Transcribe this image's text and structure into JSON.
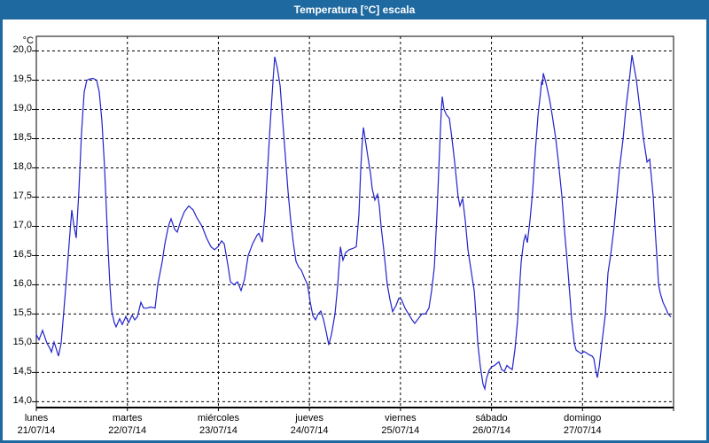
{
  "window": {
    "title": "Temperatura [°C] escala"
  },
  "colors": {
    "titlebar_bg": "#1E69A0",
    "title_text": "#FFFFFF",
    "frame_border": "#1E69A0",
    "background": "#FFFFFF",
    "grid": "#000000",
    "line": "#2222CC"
  },
  "chart_data": {
    "type": "line",
    "title": "Temperatura [°C] escala",
    "y_unit_label": "°C",
    "ylim": [
      13.9,
      20.25
    ],
    "y_gridlines": [
      20.0,
      19.5,
      19.0,
      18.5,
      18.0,
      17.5,
      17.0,
      16.5,
      16.0,
      15.5,
      15.0,
      14.5,
      14.0
    ],
    "y_tick_labels": [
      "20,0",
      "19,5",
      "19,0",
      "18,5",
      "18,0",
      "17,5",
      "17,0",
      "16,5",
      "16,0",
      "15,5",
      "15,0",
      "14,5",
      "14,0"
    ],
    "xlim": [
      0,
      7
    ],
    "x_day_gridlines": [
      1,
      2,
      3,
      4,
      5,
      6
    ],
    "x_ticks": [
      {
        "day": 0,
        "name": "lunes",
        "date": "21/07/14"
      },
      {
        "day": 1,
        "name": "martes",
        "date": "22/07/14"
      },
      {
        "day": 2,
        "name": "miércoles",
        "date": "23/07/14"
      },
      {
        "day": 3,
        "name": "jueves",
        "date": "24/07/14"
      },
      {
        "day": 4,
        "name": "viernes",
        "date": "25/07/14"
      },
      {
        "day": 5,
        "name": "sábado",
        "date": "26/07/14"
      },
      {
        "day": 6,
        "name": "domingo",
        "date": "27/07/14"
      }
    ],
    "grid": "dashed-black",
    "legend": "none",
    "series": [
      {
        "name": "Temperatura",
        "color": "#2222CC",
        "points": [
          [
            0.0,
            15.15
          ],
          [
            0.029,
            15.06
          ],
          [
            0.068,
            15.22
          ],
          [
            0.117,
            15.0
          ],
          [
            0.146,
            14.92
          ],
          [
            0.166,
            14.85
          ],
          [
            0.195,
            15.02
          ],
          [
            0.224,
            14.88
          ],
          [
            0.243,
            14.78
          ],
          [
            0.273,
            15.0
          ],
          [
            0.302,
            15.55
          ],
          [
            0.341,
            16.3
          ],
          [
            0.37,
            16.9
          ],
          [
            0.389,
            17.28
          ],
          [
            0.409,
            17.05
          ],
          [
            0.438,
            16.8
          ],
          [
            0.467,
            17.6
          ],
          [
            0.497,
            18.6
          ],
          [
            0.526,
            19.3
          ],
          [
            0.555,
            19.5
          ],
          [
            0.584,
            19.52
          ],
          [
            0.623,
            19.53
          ],
          [
            0.662,
            19.5
          ],
          [
            0.691,
            19.3
          ],
          [
            0.72,
            18.8
          ],
          [
            0.75,
            18.0
          ],
          [
            0.769,
            17.3
          ],
          [
            0.789,
            16.6
          ],
          [
            0.808,
            16.0
          ],
          [
            0.828,
            15.55
          ],
          [
            0.857,
            15.35
          ],
          [
            0.876,
            15.28
          ],
          [
            0.915,
            15.42
          ],
          [
            0.944,
            15.32
          ],
          [
            0.983,
            15.46
          ],
          [
            1.013,
            15.35
          ],
          [
            1.052,
            15.48
          ],
          [
            1.081,
            15.4
          ],
          [
            1.11,
            15.45
          ],
          [
            1.149,
            15.7
          ],
          [
            1.178,
            15.6
          ],
          [
            1.217,
            15.6
          ],
          [
            1.256,
            15.62
          ],
          [
            1.305,
            15.6
          ],
          [
            1.334,
            16.0
          ],
          [
            1.383,
            16.4
          ],
          [
            1.412,
            16.7
          ],
          [
            1.451,
            17.0
          ],
          [
            1.48,
            17.13
          ],
          [
            1.519,
            16.95
          ],
          [
            1.548,
            16.9
          ],
          [
            1.587,
            17.1
          ],
          [
            1.626,
            17.25
          ],
          [
            1.675,
            17.35
          ],
          [
            1.723,
            17.28
          ],
          [
            1.762,
            17.15
          ],
          [
            1.821,
            17.0
          ],
          [
            1.87,
            16.8
          ],
          [
            1.918,
            16.65
          ],
          [
            1.957,
            16.6
          ],
          [
            1.996,
            16.65
          ],
          [
            2.035,
            16.75
          ],
          [
            2.064,
            16.7
          ],
          [
            2.103,
            16.35
          ],
          [
            2.132,
            16.05
          ],
          [
            2.171,
            16.0
          ],
          [
            2.21,
            16.05
          ],
          [
            2.249,
            15.9
          ],
          [
            2.288,
            16.1
          ],
          [
            2.327,
            16.5
          ],
          [
            2.376,
            16.7
          ],
          [
            2.425,
            16.85
          ],
          [
            2.444,
            16.88
          ],
          [
            2.483,
            16.73
          ],
          [
            2.512,
            17.2
          ],
          [
            2.541,
            18.0
          ],
          [
            2.571,
            18.8
          ],
          [
            2.6,
            19.5
          ],
          [
            2.619,
            19.9
          ],
          [
            2.648,
            19.7
          ],
          [
            2.678,
            19.4
          ],
          [
            2.707,
            18.8
          ],
          [
            2.736,
            18.2
          ],
          [
            2.765,
            17.6
          ],
          [
            2.794,
            17.1
          ],
          [
            2.824,
            16.7
          ],
          [
            2.853,
            16.4
          ],
          [
            2.882,
            16.3
          ],
          [
            2.911,
            16.25
          ],
          [
            2.95,
            16.1
          ],
          [
            2.979,
            16.0
          ],
          [
            3.009,
            15.7
          ],
          [
            3.038,
            15.47
          ],
          [
            3.067,
            15.4
          ],
          [
            3.096,
            15.5
          ],
          [
            3.125,
            15.55
          ],
          [
            3.155,
            15.4
          ],
          [
            3.184,
            15.2
          ],
          [
            3.213,
            14.97
          ],
          [
            3.242,
            15.15
          ],
          [
            3.281,
            15.5
          ],
          [
            3.311,
            16.0
          ],
          [
            3.34,
            16.65
          ],
          [
            3.369,
            16.42
          ],
          [
            3.398,
            16.55
          ],
          [
            3.437,
            16.6
          ],
          [
            3.476,
            16.62
          ],
          [
            3.515,
            16.65
          ],
          [
            3.544,
            17.2
          ],
          [
            3.564,
            18.0
          ],
          [
            3.583,
            18.5
          ],
          [
            3.593,
            18.69
          ],
          [
            3.612,
            18.5
          ],
          [
            3.641,
            18.2
          ],
          [
            3.671,
            17.9
          ],
          [
            3.69,
            17.64
          ],
          [
            3.719,
            17.45
          ],
          [
            3.748,
            17.55
          ],
          [
            3.768,
            17.35
          ],
          [
            3.787,
            17.0
          ],
          [
            3.816,
            16.6
          ],
          [
            3.855,
            16.0
          ],
          [
            3.885,
            15.75
          ],
          [
            3.914,
            15.54
          ],
          [
            3.953,
            15.65
          ],
          [
            3.982,
            15.77
          ],
          [
            4.011,
            15.75
          ],
          [
            4.05,
            15.6
          ],
          [
            4.089,
            15.5
          ],
          [
            4.128,
            15.4
          ],
          [
            4.157,
            15.34
          ],
          [
            4.196,
            15.42
          ],
          [
            4.235,
            15.5
          ],
          [
            4.274,
            15.5
          ],
          [
            4.313,
            15.6
          ],
          [
            4.342,
            15.9
          ],
          [
            4.372,
            16.3
          ],
          [
            4.401,
            17.2
          ],
          [
            4.43,
            18.3
          ],
          [
            4.449,
            19.0
          ],
          [
            4.459,
            19.22
          ],
          [
            4.478,
            19.0
          ],
          [
            4.508,
            18.9
          ],
          [
            4.537,
            18.85
          ],
          [
            4.566,
            18.5
          ],
          [
            4.595,
            18.1
          ],
          [
            4.615,
            17.8
          ],
          [
            4.634,
            17.5
          ],
          [
            4.654,
            17.35
          ],
          [
            4.683,
            17.48
          ],
          [
            4.712,
            17.1
          ],
          [
            4.741,
            16.6
          ],
          [
            4.771,
            16.3
          ],
          [
            4.79,
            16.1
          ],
          [
            4.81,
            15.9
          ],
          [
            4.829,
            15.5
          ],
          [
            4.849,
            15.0
          ],
          [
            4.878,
            14.6
          ],
          [
            4.907,
            14.3
          ],
          [
            4.926,
            14.22
          ],
          [
            4.946,
            14.4
          ],
          [
            4.975,
            14.54
          ],
          [
            5.004,
            14.6
          ],
          [
            5.034,
            14.62
          ],
          [
            5.063,
            14.66
          ],
          [
            5.082,
            14.68
          ],
          [
            5.111,
            14.55
          ],
          [
            5.141,
            14.52
          ],
          [
            5.17,
            14.62
          ],
          [
            5.199,
            14.58
          ],
          [
            5.228,
            14.55
          ],
          [
            5.258,
            14.9
          ],
          [
            5.287,
            15.4
          ],
          [
            5.306,
            15.9
          ],
          [
            5.326,
            16.4
          ],
          [
            5.355,
            16.75
          ],
          [
            5.374,
            16.85
          ],
          [
            5.394,
            16.72
          ],
          [
            5.423,
            17.1
          ],
          [
            5.452,
            17.6
          ],
          [
            5.482,
            18.3
          ],
          [
            5.511,
            18.9
          ],
          [
            5.54,
            19.3
          ],
          [
            5.55,
            19.48
          ],
          [
            5.56,
            19.42
          ],
          [
            5.569,
            19.62
          ],
          [
            5.599,
            19.45
          ],
          [
            5.638,
            19.17
          ],
          [
            5.667,
            18.9
          ],
          [
            5.706,
            18.5
          ],
          [
            5.735,
            18.1
          ],
          [
            5.774,
            17.5
          ],
          [
            5.803,
            16.9
          ],
          [
            5.832,
            16.4
          ],
          [
            5.862,
            15.8
          ],
          [
            5.881,
            15.4
          ],
          [
            5.91,
            15.0
          ],
          [
            5.93,
            14.88
          ],
          [
            5.959,
            14.85
          ],
          [
            5.988,
            14.82
          ],
          [
            6.017,
            14.86
          ],
          [
            6.047,
            14.83
          ],
          [
            6.076,
            14.8
          ],
          [
            6.105,
            14.78
          ],
          [
            6.124,
            14.74
          ],
          [
            6.144,
            14.55
          ],
          [
            6.163,
            14.41
          ],
          [
            6.183,
            14.6
          ],
          [
            6.212,
            15.0
          ],
          [
            6.251,
            15.5
          ],
          [
            6.28,
            16.2
          ],
          [
            6.309,
            16.5
          ],
          [
            6.348,
            17.0
          ],
          [
            6.377,
            17.5
          ],
          [
            6.407,
            18.0
          ],
          [
            6.446,
            18.5
          ],
          [
            6.475,
            19.0
          ],
          [
            6.514,
            19.5
          ],
          [
            6.543,
            19.93
          ],
          [
            6.592,
            19.5
          ],
          [
            6.631,
            19.0
          ],
          [
            6.67,
            18.5
          ],
          [
            6.709,
            18.1
          ],
          [
            6.738,
            18.15
          ],
          [
            6.777,
            17.5
          ],
          [
            6.796,
            17.0
          ],
          [
            6.816,
            16.5
          ],
          [
            6.835,
            16.0
          ],
          [
            6.855,
            15.85
          ],
          [
            6.884,
            15.7
          ],
          [
            6.913,
            15.6
          ],
          [
            6.942,
            15.5
          ],
          [
            6.971,
            15.45
          ]
        ]
      }
    ]
  }
}
